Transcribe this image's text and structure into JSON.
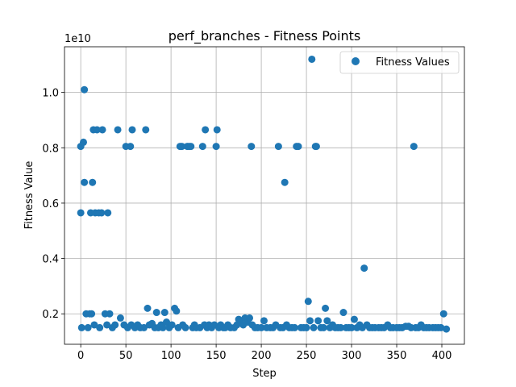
{
  "chart_data": {
    "type": "scatter",
    "title": "perf_branches - Fitness Points",
    "xlabel": "Step",
    "ylabel": "Fitness Value",
    "y_offset_label": "1e10",
    "y_scale": 10000000000,
    "xlim": [
      -18,
      425
    ],
    "ylim": [
      0.09,
      1.165
    ],
    "x_ticks": [
      0,
      50,
      100,
      150,
      200,
      250,
      300,
      350,
      400
    ],
    "x_tick_labels": [
      "0",
      "50",
      "100",
      "150",
      "200",
      "250",
      "300",
      "350",
      "400"
    ],
    "y_ticks": [
      0.2,
      0.4,
      0.6,
      0.8,
      1.0
    ],
    "y_tick_labels": [
      "0.2",
      "0.4",
      "0.6",
      "0.8",
      "1.0"
    ],
    "grid": true,
    "legend": {
      "position": "top-right",
      "entries": [
        "Fitness Values"
      ]
    },
    "series": [
      {
        "name": "Fitness Values",
        "color": "#1f77b4",
        "points": [
          [
            0,
            0.805
          ],
          [
            0,
            0.565
          ],
          [
            1,
            0.15
          ],
          [
            3,
            0.82
          ],
          [
            4,
            1.01
          ],
          [
            4,
            0.675
          ],
          [
            6,
            0.2
          ],
          [
            8,
            0.15
          ],
          [
            10,
            0.2
          ],
          [
            11,
            0.565
          ],
          [
            12,
            0.2
          ],
          [
            13,
            0.675
          ],
          [
            14,
            0.865
          ],
          [
            15,
            0.16
          ],
          [
            16,
            0.565
          ],
          [
            18,
            0.865
          ],
          [
            20,
            0.565
          ],
          [
            21,
            0.15
          ],
          [
            23,
            0.565
          ],
          [
            24,
            0.865
          ],
          [
            27,
            0.2
          ],
          [
            29,
            0.16
          ],
          [
            30,
            0.565
          ],
          [
            32,
            0.2
          ],
          [
            35,
            0.15
          ],
          [
            38,
            0.16
          ],
          [
            41,
            0.865
          ],
          [
            44,
            0.185
          ],
          [
            48,
            0.16
          ],
          [
            50,
            0.805
          ],
          [
            52,
            0.15
          ],
          [
            55,
            0.805
          ],
          [
            56,
            0.16
          ],
          [
            57,
            0.865
          ],
          [
            60,
            0.15
          ],
          [
            63,
            0.16
          ],
          [
            66,
            0.15
          ],
          [
            70,
            0.15
          ],
          [
            72,
            0.865
          ],
          [
            74,
            0.22
          ],
          [
            76,
            0.16
          ],
          [
            79,
            0.165
          ],
          [
            82,
            0.15
          ],
          [
            84,
            0.205
          ],
          [
            86,
            0.15
          ],
          [
            89,
            0.16
          ],
          [
            91,
            0.15
          ],
          [
            93,
            0.205
          ],
          [
            95,
            0.17
          ],
          [
            98,
            0.15
          ],
          [
            101,
            0.16
          ],
          [
            104,
            0.22
          ],
          [
            106,
            0.21
          ],
          [
            108,
            0.15
          ],
          [
            110,
            0.805
          ],
          [
            112,
            0.805
          ],
          [
            113,
            0.16
          ],
          [
            116,
            0.15
          ],
          [
            118,
            0.805
          ],
          [
            120,
            0.805
          ],
          [
            122,
            0.805
          ],
          [
            124,
            0.15
          ],
          [
            126,
            0.16
          ],
          [
            128,
            0.15
          ],
          [
            132,
            0.15
          ],
          [
            135,
            0.805
          ],
          [
            137,
            0.16
          ],
          [
            138,
            0.865
          ],
          [
            140,
            0.15
          ],
          [
            142,
            0.16
          ],
          [
            145,
            0.15
          ],
          [
            148,
            0.16
          ],
          [
            150,
            0.805
          ],
          [
            151,
            0.865
          ],
          [
            153,
            0.15
          ],
          [
            155,
            0.16
          ],
          [
            158,
            0.15
          ],
          [
            160,
            0.15
          ],
          [
            163,
            0.16
          ],
          [
            166,
            0.15
          ],
          [
            170,
            0.15
          ],
          [
            173,
            0.16
          ],
          [
            175,
            0.18
          ],
          [
            177,
            0.175
          ],
          [
            180,
            0.16
          ],
          [
            182,
            0.185
          ],
          [
            185,
            0.17
          ],
          [
            187,
            0.185
          ],
          [
            189,
            0.805
          ],
          [
            190,
            0.16
          ],
          [
            193,
            0.15
          ],
          [
            196,
            0.15
          ],
          [
            200,
            0.15
          ],
          [
            203,
            0.175
          ],
          [
            206,
            0.15
          ],
          [
            210,
            0.15
          ],
          [
            213,
            0.15
          ],
          [
            216,
            0.16
          ],
          [
            219,
            0.805
          ],
          [
            221,
            0.15
          ],
          [
            224,
            0.15
          ],
          [
            226,
            0.675
          ],
          [
            228,
            0.16
          ],
          [
            231,
            0.15
          ],
          [
            234,
            0.15
          ],
          [
            237,
            0.15
          ],
          [
            239,
            0.805
          ],
          [
            241,
            0.805
          ],
          [
            244,
            0.15
          ],
          [
            247,
            0.15
          ],
          [
            250,
            0.15
          ],
          [
            252,
            0.245
          ],
          [
            254,
            0.175
          ],
          [
            256,
            1.12
          ],
          [
            258,
            0.15
          ],
          [
            260,
            0.805
          ],
          [
            261,
            0.805
          ],
          [
            263,
            0.175
          ],
          [
            266,
            0.15
          ],
          [
            269,
            0.15
          ],
          [
            271,
            0.22
          ],
          [
            273,
            0.175
          ],
          [
            276,
            0.15
          ],
          [
            279,
            0.16
          ],
          [
            282,
            0.15
          ],
          [
            285,
            0.15
          ],
          [
            288,
            0.15
          ],
          [
            291,
            0.205
          ],
          [
            294,
            0.15
          ],
          [
            297,
            0.15
          ],
          [
            300,
            0.15
          ],
          [
            303,
            0.18
          ],
          [
            306,
            0.15
          ],
          [
            309,
            0.16
          ],
          [
            312,
            0.15
          ],
          [
            314,
            0.365
          ],
          [
            317,
            0.16
          ],
          [
            320,
            0.15
          ],
          [
            323,
            0.15
          ],
          [
            326,
            0.15
          ],
          [
            330,
            0.15
          ],
          [
            333,
            0.15
          ],
          [
            336,
            0.15
          ],
          [
            340,
            0.16
          ],
          [
            343,
            0.15
          ],
          [
            346,
            0.15
          ],
          [
            350,
            0.15
          ],
          [
            353,
            0.15
          ],
          [
            356,
            0.15
          ],
          [
            360,
            0.155
          ],
          [
            363,
            0.155
          ],
          [
            366,
            0.15
          ],
          [
            369,
            0.805
          ],
          [
            371,
            0.15
          ],
          [
            374,
            0.15
          ],
          [
            377,
            0.16
          ],
          [
            380,
            0.15
          ],
          [
            383,
            0.15
          ],
          [
            386,
            0.15
          ],
          [
            390,
            0.15
          ],
          [
            393,
            0.15
          ],
          [
            396,
            0.15
          ],
          [
            399,
            0.15
          ],
          [
            402,
            0.2
          ],
          [
            405,
            0.145
          ]
        ]
      }
    ]
  }
}
